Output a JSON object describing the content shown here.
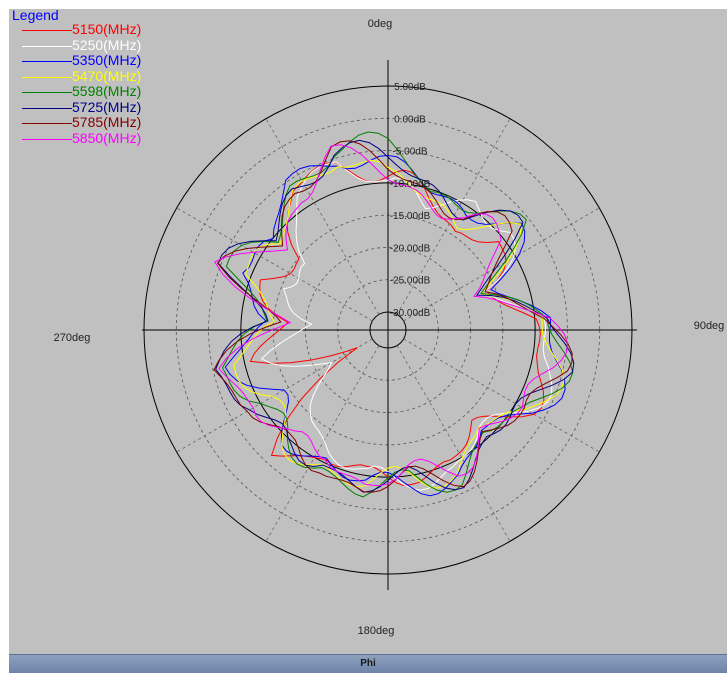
{
  "chart_data": {
    "type": "polar-line",
    "title": "",
    "axis_title": "Phi",
    "angle_labels": [
      {
        "angle": 0,
        "text": "0deg"
      },
      {
        "angle": 90,
        "text": "90deg"
      },
      {
        "angle": 180,
        "text": "180deg"
      },
      {
        "angle": 270,
        "text": "270deg"
      }
    ],
    "radial_range_db": [
      -30,
      5
    ],
    "radial_ticks": [
      "5.00dB",
      "0.00dB",
      "-5.00dB",
      "-10.00dB",
      "-15.00dB",
      "-20.00dB",
      "-25.00dB",
      "-30.00dB"
    ],
    "radial_tick_values": [
      5,
      0,
      -5,
      -10,
      -15,
      -20,
      -25,
      -30
    ],
    "grid": true,
    "legend": {
      "title": "Legend",
      "position": "top-left"
    },
    "angle_step_deg": 30,
    "series": [
      {
        "name": "5150(MHz)",
        "color": "#ff0000",
        "values": [
          -9,
          -12,
          -14,
          -10,
          -18,
          -9,
          -8,
          -9,
          -12,
          -10,
          -11,
          -9,
          -11,
          -8,
          -25,
          -12,
          -18,
          -10,
          -16,
          -7,
          -5
        ]
      },
      {
        "name": "5250(MHz)",
        "color": "#ffffff",
        "values": [
          -11,
          -13,
          -8,
          -9,
          -17,
          -8,
          -7,
          -9,
          -11,
          -9,
          -10,
          -9,
          -12,
          -17,
          -20,
          -14,
          -22,
          -13,
          -18,
          -8,
          -4
        ]
      },
      {
        "name": "5350(MHz)",
        "color": "#0000ff",
        "values": [
          -8,
          -10,
          -10,
          -8,
          -15,
          -7,
          -6,
          -7,
          -11,
          -8,
          -9,
          -8,
          -11,
          -10,
          -12,
          -8,
          -15,
          -6,
          -12,
          -5,
          -4
        ]
      },
      {
        "name": "5470(MHz)",
        "color": "#ffff00",
        "values": [
          -10,
          -11,
          -12,
          -9,
          -16,
          -8,
          -7,
          -7,
          -12,
          -9,
          -10,
          -8,
          -10,
          -9,
          -11,
          -9,
          -16,
          -7,
          -13,
          -7,
          -4
        ]
      },
      {
        "name": "5598(MHz)",
        "color": "#008000",
        "values": [
          -5,
          -10,
          -9,
          -8,
          -16,
          -7,
          -6,
          -7,
          -11,
          -8,
          -9,
          -7,
          -10,
          -9,
          -10,
          -7,
          -14,
          -5,
          -12,
          -6,
          -3
        ]
      },
      {
        "name": "5725(MHz)",
        "color": "#000080",
        "values": [
          -7,
          -9,
          -11,
          -8,
          -17,
          -7,
          -6,
          -8,
          -10,
          -8,
          -9,
          -8,
          -11,
          -8,
          -9,
          -6,
          -13,
          -5,
          -11,
          -6,
          -4
        ]
      },
      {
        "name": "5785(MHz)",
        "color": "#800000",
        "values": [
          -8,
          -10,
          -12,
          -9,
          -16,
          -8,
          -6,
          -7,
          -11,
          -8,
          -9,
          -8,
          -10,
          -8,
          -9,
          -6,
          -14,
          -6,
          -12,
          -6,
          -4
        ]
      },
      {
        "name": "5850(MHz)",
        "color": "#ff00ff",
        "values": [
          -9,
          -11,
          -13,
          -10,
          -18,
          -8,
          -7,
          -8,
          -12,
          -9,
          -10,
          -9,
          -12,
          -9,
          -10,
          -7,
          -15,
          -6,
          -13,
          -7,
          -5
        ]
      }
    ]
  }
}
